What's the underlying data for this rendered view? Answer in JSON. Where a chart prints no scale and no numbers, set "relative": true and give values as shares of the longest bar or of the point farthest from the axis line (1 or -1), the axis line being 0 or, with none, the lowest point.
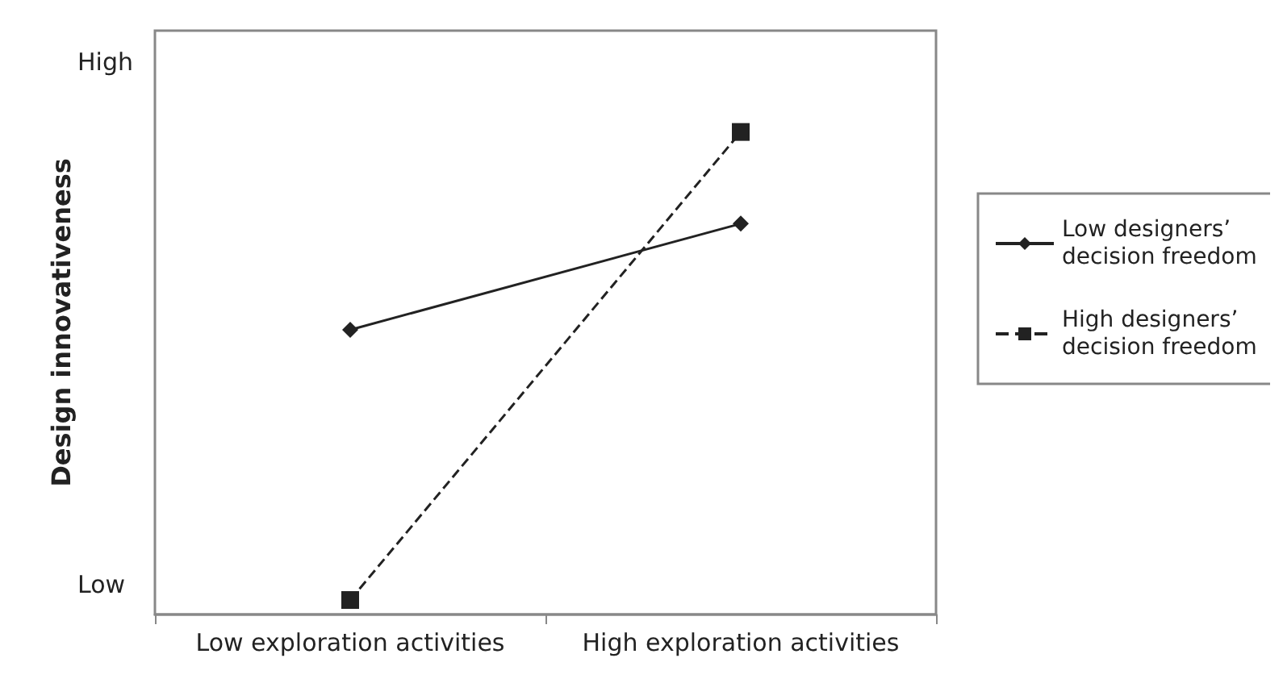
{
  "chart_data": {
    "type": "line",
    "ylabel": "Design innovativeness",
    "relative": true,
    "categories": [
      "Low exploration activities",
      "High exploration activities"
    ],
    "series": [
      {
        "name": "Low designers’ decision freedom",
        "color": "#222222",
        "values": [
          0.59,
          0.81
        ],
        "marker": "diamond",
        "line_style": "solid"
      },
      {
        "name": "High designers’ decision freedom",
        "color": "#222222",
        "values": [
          0.03,
          1.0
        ],
        "marker": "square",
        "line_style": "dashed"
      }
    ],
    "annotations": [
      "High",
      "Low"
    ],
    "grid": false,
    "legend": "right"
  }
}
